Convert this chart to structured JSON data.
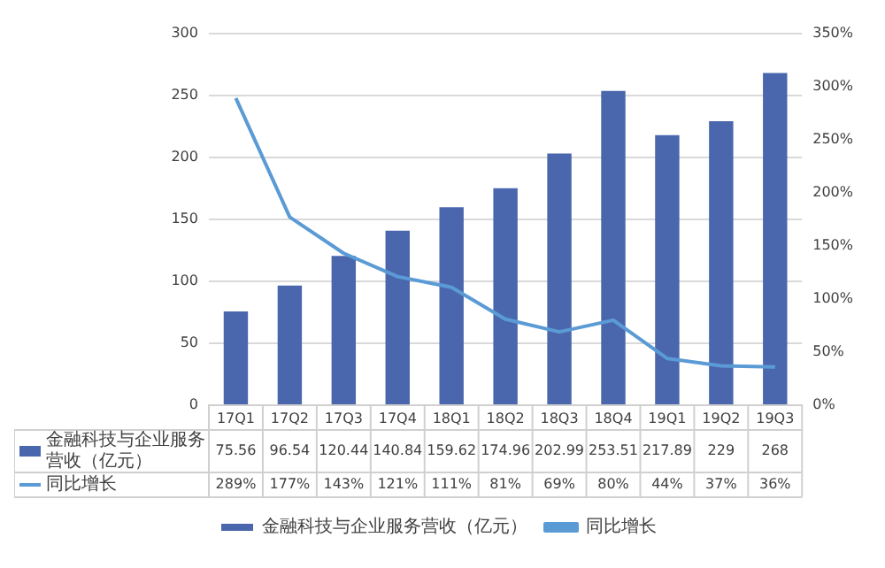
{
  "chart_data": {
    "type": "bar",
    "categories": [
      "17Q1",
      "17Q2",
      "17Q3",
      "17Q4",
      "18Q1",
      "18Q2",
      "18Q3",
      "18Q4",
      "19Q1",
      "19Q2",
      "19Q3"
    ],
    "series": [
      {
        "name": "金融科技与企业服务营收（亿元）",
        "color": "#4a67ad",
        "values": [
          75.56,
          96.54,
          120.44,
          140.84,
          159.62,
          174.96,
          202.99,
          253.51,
          217.89,
          229,
          268
        ],
        "value_labels": [
          "75.56",
          "96.54",
          "120.44",
          "140.84",
          "159.62",
          "174.96",
          "202.99",
          "253.51",
          "217.89",
          "229",
          "268"
        ]
      },
      {
        "name": "同比增长",
        "type": "line",
        "axis": "y2",
        "color": "#5b9bd5",
        "values": [
          289,
          177,
          143,
          121,
          111,
          81,
          69,
          80,
          44,
          37,
          36
        ],
        "value_labels": [
          "289%",
          "177%",
          "143%",
          "121%",
          "111%",
          "81%",
          "69%",
          "80%",
          "44%",
          "37%",
          "36%"
        ]
      }
    ],
    "ylim": [
      0,
      300
    ],
    "yticks": [
      0,
      50,
      100,
      150,
      200,
      250,
      300
    ],
    "y2lim": [
      0,
      350
    ],
    "y2ticks": [
      {
        "value": 0,
        "label": "0%"
      },
      {
        "value": 50,
        "label": "50%"
      },
      {
        "value": 100,
        "label": "100%"
      },
      {
        "value": 150,
        "label": "150%"
      },
      {
        "value": 200,
        "label": "200%"
      },
      {
        "value": 250,
        "label": "250%"
      },
      {
        "value": 300,
        "label": "300%"
      },
      {
        "value": 350,
        "label": "350%"
      }
    ],
    "grid": "y",
    "legend": "bottom",
    "marker": "none",
    "line_style": "solid"
  }
}
